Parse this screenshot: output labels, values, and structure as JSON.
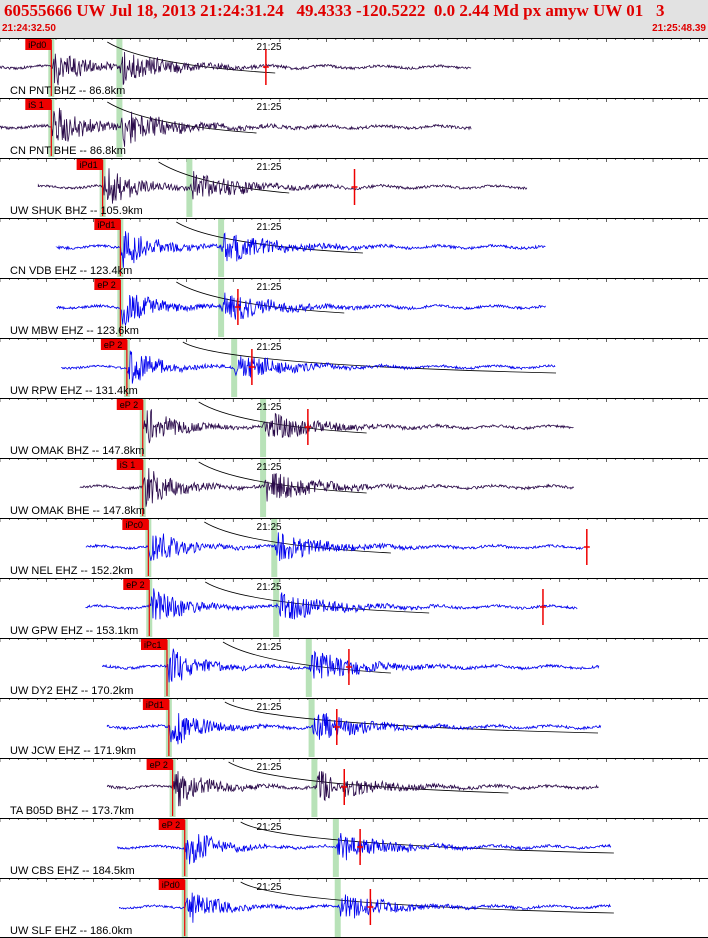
{
  "header": {
    "title": "60555666 UW Jul 18, 2013 21:24:31.24   49.4333 -120.5222  0.0 2.44 Md px amyw UW 01   3",
    "start_time": "21:24:32.50",
    "end_time": "21:25:48.39"
  },
  "colors": {
    "header_bg": "#e2e2e2",
    "header_text": "#e00000",
    "broadband_trace": "#2a0a4a",
    "short_period_trace": "#0000ee",
    "pick_box": "#ee0000",
    "window_band": "#b8e2b8"
  },
  "chart_data": {
    "type": "seismogram",
    "time_start_s": 0,
    "time_end_s": 75.89,
    "minute_label": "21:25",
    "minute_mark_s": 27.5,
    "stations": [
      {
        "label": "CN PNT BHZ -- 86.8km",
        "pick": "iPd0",
        "trace_color": "broadband",
        "p_s": 5.5,
        "s_s": 12.8,
        "trace_start_s": 0,
        "trace_end_s": 50.5,
        "ampl": 0.4,
        "coda_s": 18,
        "red_mark_s": 28.5
      },
      {
        "label": "CN PNT BHE -- 86.8km",
        "pick": "iS 1",
        "trace_color": "broadband",
        "p_s": 5.5,
        "s_s": 12.8,
        "trace_start_s": 0,
        "trace_end_s": 50.5,
        "ampl": 0.45,
        "coda_s": 16,
        "red_mark_s": null
      },
      {
        "label": "UW SHUK BHZ -- 105.9km",
        "pick": "iPd1",
        "trace_color": "broadband",
        "p_s": 11.0,
        "s_s": 20.3,
        "trace_start_s": 4.1,
        "trace_end_s": 56.5,
        "ampl": 0.4,
        "coda_s": 14,
        "red_mark_s": 38.0
      },
      {
        "label": "CN VDB EHZ -- 123.4km",
        "pick": "iPd1",
        "trace_color": "short",
        "p_s": 12.9,
        "s_s": 23.7,
        "trace_start_s": 6.1,
        "trace_end_s": 58.5,
        "ampl": 0.42,
        "coda_s": 20,
        "red_mark_s": null
      },
      {
        "label": "UW MBW EHZ -- 123.6km",
        "pick": "eP 2",
        "trace_color": "short",
        "p_s": 12.9,
        "s_s": 23.7,
        "trace_start_s": 6.1,
        "trace_end_s": 58.5,
        "ampl": 0.4,
        "coda_s": 18,
        "red_mark_s": 25.5
      },
      {
        "label": "UW RPW EHZ -- 131.4km",
        "pick": "eP 2",
        "trace_color": "short",
        "p_s": 13.6,
        "s_s": 25.1,
        "trace_start_s": 6.6,
        "trace_end_s": 59.5,
        "ampl": 0.36,
        "coda_s": 40,
        "red_mark_s": 27.0
      },
      {
        "label": "UW OMAK BHZ -- 147.8km",
        "pick": "eP 2",
        "trace_color": "broadband",
        "p_s": 15.3,
        "s_s": 28.2,
        "trace_start_s": 15.4,
        "trace_end_s": 61.5,
        "ampl": 0.4,
        "coda_s": 18,
        "red_mark_s": 33.0
      },
      {
        "label": "UW OMAK BHE -- 147.8km",
        "pick": "iS 1",
        "trace_color": "broadband",
        "p_s": 15.3,
        "s_s": 28.2,
        "trace_start_s": 8.6,
        "trace_end_s": 61.5,
        "ampl": 0.42,
        "coda_s": 18,
        "red_mark_s": null
      },
      {
        "label": "UW NEL EHZ -- 152.2km",
        "pick": "iPc0",
        "trace_color": "short",
        "p_s": 15.9,
        "s_s": 29.4,
        "trace_start_s": 9.2,
        "trace_end_s": 62.6,
        "ampl": 0.38,
        "coda_s": 20,
        "red_mark_s": 62.9
      },
      {
        "label": "UW GPW EHZ -- 153.1km",
        "pick": "eP 2",
        "trace_color": "short",
        "p_s": 16.0,
        "s_s": 29.6,
        "trace_start_s": 9.2,
        "trace_end_s": 61.9,
        "ampl": 0.4,
        "coda_s": 24,
        "red_mark_s": 58.2
      },
      {
        "label": "UW DY2 EHZ -- 170.2km",
        "pick": "iPc1",
        "trace_color": "short",
        "p_s": 17.9,
        "s_s": 33.1,
        "trace_start_s": 11.0,
        "trace_end_s": 64.2,
        "ampl": 0.4,
        "coda_s": 18,
        "red_mark_s": 37.4
      },
      {
        "label": "UW JCW EHZ -- 171.9km",
        "pick": "iPd1",
        "trace_color": "short",
        "p_s": 18.1,
        "s_s": 33.4,
        "trace_start_s": 11.5,
        "trace_end_s": 64.4,
        "ampl": 0.4,
        "coda_s": 40,
        "red_mark_s": 36.1
      },
      {
        "label": "TA B05D BHZ -- 173.7km",
        "pick": "eP 2",
        "trace_color": "broadband",
        "p_s": 18.5,
        "s_s": 33.7,
        "trace_start_s": 11.5,
        "trace_end_s": 64.2,
        "ampl": 0.42,
        "coda_s": 30,
        "red_mark_s": 36.9
      },
      {
        "label": "UW CBS EHZ -- 184.5km",
        "pick": "eP 2",
        "trace_color": "short",
        "p_s": 19.8,
        "s_s": 36.0,
        "trace_start_s": 12.6,
        "trace_end_s": 65.5,
        "ampl": 0.38,
        "coda_s": 40,
        "red_mark_s": 38.6
      },
      {
        "label": "UW SLF EHZ -- 186.0km",
        "pick": "iPd0",
        "trace_color": "short",
        "p_s": 19.8,
        "s_s": 36.2,
        "trace_start_s": 12.8,
        "trace_end_s": 65.5,
        "ampl": 0.36,
        "coda_s": 40,
        "red_mark_s": 39.7
      }
    ]
  }
}
